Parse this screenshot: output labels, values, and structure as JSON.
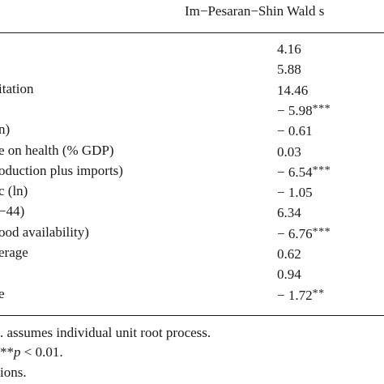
{
  "table": {
    "header": "Im−Pesaran−Shin Wald s",
    "rows": [
      {
        "label": "",
        "value": "4.16",
        "sig": ""
      },
      {
        "label": "",
        "value": "5.88",
        "sig": ""
      },
      {
        "label": "itation",
        "value": "14.46",
        "sig": ""
      },
      {
        "label": "",
        "value": "− 5.98",
        "sig": "***"
      },
      {
        "label": "n)",
        "value": "− 0.61",
        "sig": ""
      },
      {
        "label": "e on health (% GDP)",
        "value": "0.03",
        "sig": ""
      },
      {
        "label": "oduction plus imports)",
        "value": "− 6.54",
        "sig": "***"
      },
      {
        "label": "c (ln)",
        "value": "− 1.05",
        "sig": ""
      },
      {
        "label": "−44)",
        "value": "6.34",
        "sig": ""
      },
      {
        "label": "ood availability)",
        "value": "− 6.76",
        "sig": "***"
      },
      {
        "label": "erage",
        "value": "0.62",
        "sig": ""
      },
      {
        "label": "",
        "value": "0.94",
        "sig": ""
      },
      {
        "label": "e",
        "value": "− 1.72",
        "sig": "**"
      }
    ],
    "notes": {
      "line1": ". assumes individual unit root process.",
      "line2_stars": "**",
      "line2_p": "p",
      "line2_rest": " < 0.01.",
      "line3": "ions."
    }
  }
}
